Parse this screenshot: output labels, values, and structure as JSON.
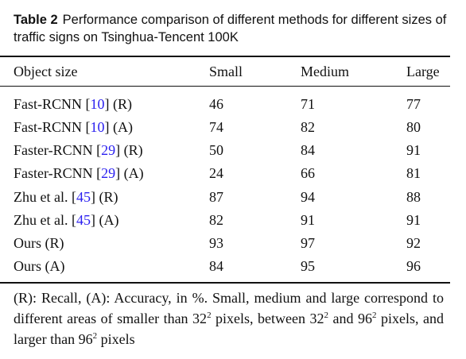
{
  "caption": {
    "label": "Table 2",
    "text": "Performance comparison of different methods for different sizes of traffic signs on Tsinghua-Tencent 100K"
  },
  "table": {
    "headers": [
      "Object size",
      "Small",
      "Medium",
      "Large"
    ],
    "rows": [
      {
        "method": "Fast-RCNN",
        "cite": "10",
        "tag": "(R)",
        "small": "46",
        "medium": "71",
        "large": "77"
      },
      {
        "method": "Fast-RCNN",
        "cite": "10",
        "tag": "(A)",
        "small": "74",
        "medium": "82",
        "large": "80"
      },
      {
        "method": "Faster-RCNN",
        "cite": "29",
        "tag": "(R)",
        "small": "50",
        "medium": "84",
        "large": "91"
      },
      {
        "method": "Faster-RCNN",
        "cite": "29",
        "tag": "(A)",
        "small": "24",
        "medium": "66",
        "large": "81"
      },
      {
        "method": "Zhu et al.",
        "cite": "45",
        "tag": "(R)",
        "small": "87",
        "medium": "94",
        "large": "88"
      },
      {
        "method": "Zhu et al.",
        "cite": "45",
        "tag": "(A)",
        "small": "82",
        "medium": "91",
        "large": "91"
      },
      {
        "method": "Ours",
        "cite": "",
        "tag": "(R)",
        "small": "93",
        "medium": "97",
        "large": "92"
      },
      {
        "method": "Ours",
        "cite": "",
        "tag": "(A)",
        "small": "84",
        "medium": "95",
        "large": "96"
      }
    ]
  },
  "footnote": {
    "part1": "(R): Recall, (A): Accuracy, in %. Small, medium and large correspond to different areas of smaller than 32",
    "sup1": "2",
    "part2": " pixels, between 32",
    "sup2": "2",
    "part3": " and 96",
    "sup3": "2",
    "part4": " pixels, and larger than 96",
    "sup4": "2",
    "part5": " pixels"
  },
  "colors": {
    "text": "#111111",
    "citation_link": "#2a1ff0"
  }
}
